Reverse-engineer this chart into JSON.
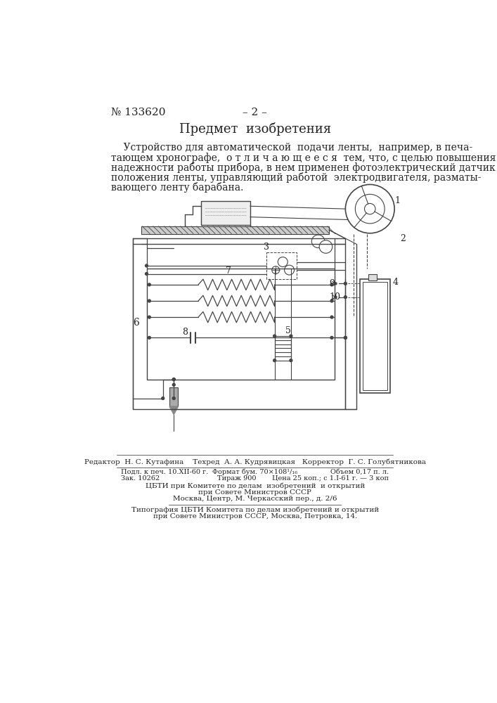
{
  "title_number": "№ 133620",
  "title_page": "– 2 –",
  "section_title": "Предмет  изобретения",
  "body_text": "Устройство для автоматической  подачи ленты,  например, в печа-\nтающем хронографе,  о т л и ч а ю щ е е с я  тем, что, с целью повышения\nнадежности работы прибора, в нем применен фотоэлектрический датчик\nположения ленты, управляющий работой  электродвигателя, разматы-\nвающего ленту барабана.",
  "footer_line1": "Редактор  Н. С. Кутафина    Техред  А. А. Кудрявицкая   Корректор  Г. С. Голубятникова",
  "footer_line2a": "Подл. к печ. 10.XII-60 г.",
  "footer_line2b": "Формат бум. 70×108¹/₁₆",
  "footer_line2c": "Объем 0,17 п. л.",
  "footer_line3a": "Зак. 10262",
  "footer_line3b": "Тираж 900",
  "footer_line3c": "Цена 25 коп.; с 1.I-61 г. — 3 коп",
  "footer_line4": "ЦБТИ при Комитете по делам  изобретений  и открытий",
  "footer_line5": "при Совете Министров СССР",
  "footer_line6": "Москва, Центр, М. Черкасский пер., д. 2/6",
  "footer_line7": "Типография ЦБТИ Комитета по делам изобретений и открытий",
  "footer_line8": "при Совете Министров СССР, Москва, Петровка, 14.",
  "bg_color": "#ffffff",
  "text_color": "#222222",
  "diagram_color": "#444444"
}
